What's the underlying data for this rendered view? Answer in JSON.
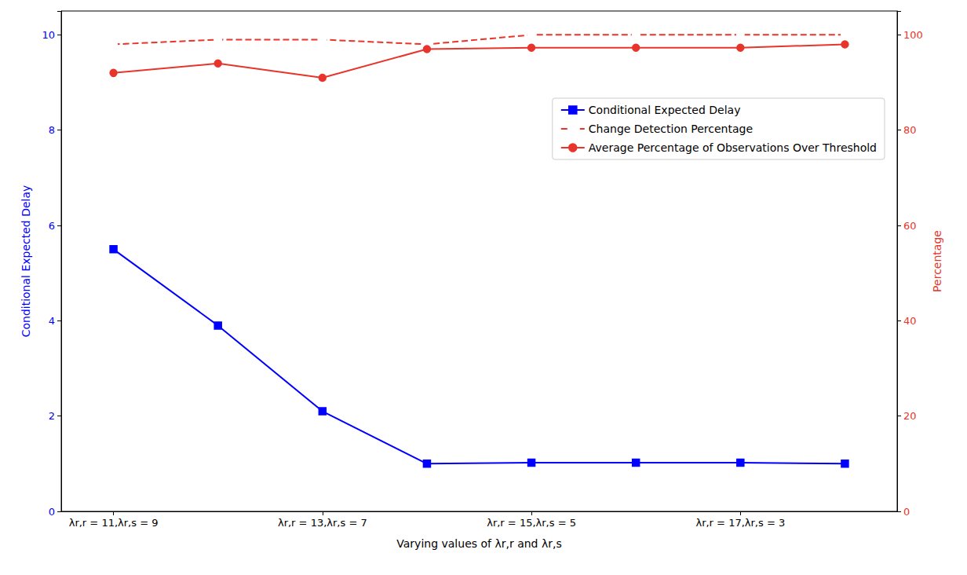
{
  "chart_data": {
    "type": "line",
    "xlabel": "Varying values of λr,r and λr,s",
    "ylabel": "Conditional Expected Delay",
    "y2label": "Percentage",
    "categories": [
      "λr,r = 11,λr,s = 9",
      null,
      "λr,r = 13,λr,s = 7",
      null,
      "λr,r = 15,λr,s = 5",
      null,
      "λr,r = 17,λr,s = 3",
      null
    ],
    "ylim": [
      0,
      10.5
    ],
    "yticks": [
      0,
      2,
      4,
      6,
      8,
      10
    ],
    "y2lim": [
      0,
      105
    ],
    "y2ticks": [
      0,
      20,
      40,
      60,
      80,
      100
    ],
    "grid": false,
    "legend": "upper right",
    "series": [
      {
        "name": "Conditional Expected Delay",
        "color": "#0000ff",
        "marker": "square",
        "line_style": "solid",
        "values": [
          5.5,
          3.9,
          2.1,
          1.0,
          1.02,
          1.02,
          1.02,
          1.0
        ]
      },
      {
        "name": "Change Detection Percentage",
        "color": "#e8352b",
        "marker": "circle_open",
        "line_style": "dashed",
        "axis": "y2",
        "values": [
          98,
          99,
          99,
          98,
          100,
          100,
          100,
          100
        ]
      },
      {
        "name": "Average Percentage of Observations Over Threshold",
        "color": "#e8352b",
        "marker": "circle",
        "line_style": "solid",
        "axis": "y2",
        "values": [
          92,
          94,
          91,
          97,
          97.3,
          97.3,
          97.3,
          98
        ]
      }
    ]
  }
}
